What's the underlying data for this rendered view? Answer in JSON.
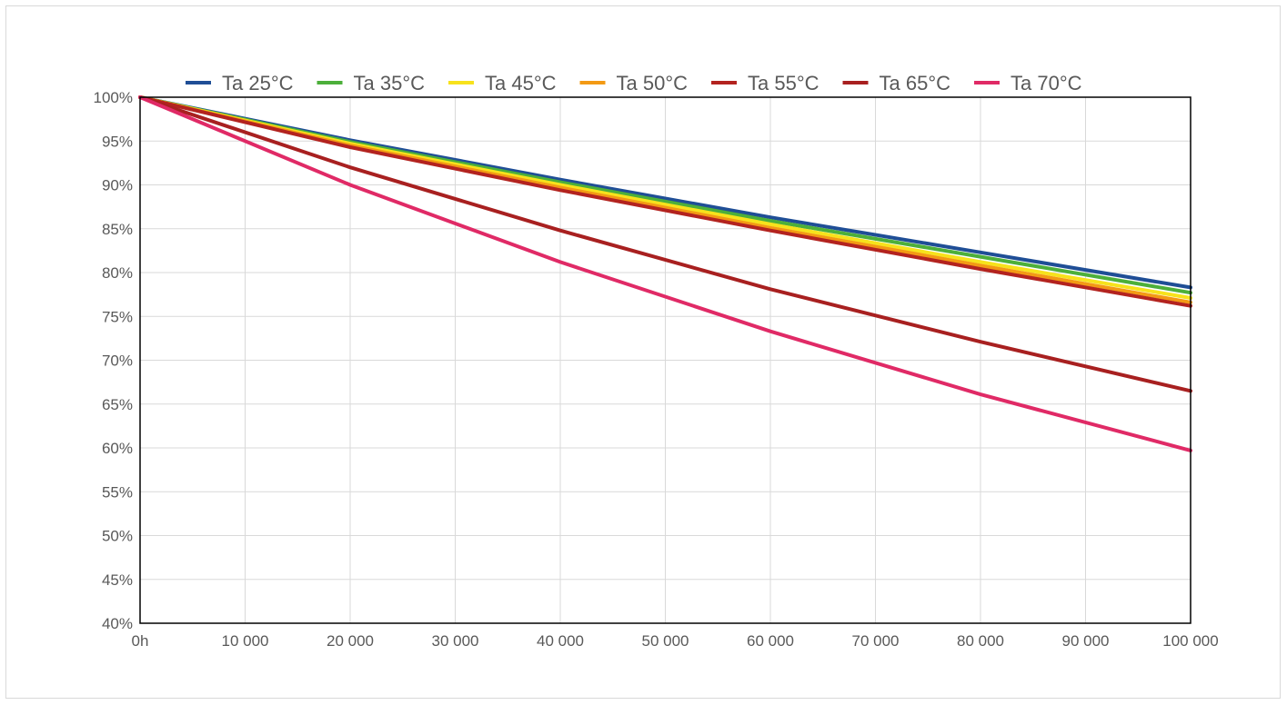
{
  "chart_data": {
    "type": "line",
    "title": "",
    "xlabel": "",
    "ylabel": "",
    "x": [
      0,
      20000,
      40000,
      60000,
      80000,
      100000
    ],
    "xlim": [
      0,
      100000
    ],
    "ylim": [
      40,
      100
    ],
    "x_tick_values": [
      0,
      10000,
      20000,
      30000,
      40000,
      50000,
      60000,
      70000,
      80000,
      90000,
      100000
    ],
    "x_tick_labels": [
      "0h",
      "10 000",
      "20 000",
      "30 000",
      "40 000",
      "50 000",
      "60 000",
      "70 000",
      "80 000",
      "90 000",
      "100 000"
    ],
    "y_tick_values": [
      40,
      45,
      50,
      55,
      60,
      65,
      70,
      75,
      80,
      85,
      90,
      95,
      100
    ],
    "y_tick_labels": [
      "40%",
      "45%",
      "50%",
      "55%",
      "60%",
      "65%",
      "70%",
      "75%",
      "80%",
      "85%",
      "90%",
      "95%",
      "100%"
    ],
    "grid": true,
    "legend_position": "top",
    "series": [
      {
        "name": "Ta 25°C",
        "color": "#1f4e96",
        "values": [
          100,
          95.1,
          90.6,
          86.3,
          82.3,
          78.3
        ]
      },
      {
        "name": "Ta 35°C",
        "color": "#4caf3a",
        "values": [
          100,
          94.9,
          90.3,
          85.9,
          81.8,
          77.7
        ]
      },
      {
        "name": "Ta 45°C",
        "color": "#f7e21c",
        "values": [
          100,
          94.7,
          90.0,
          85.5,
          81.2,
          77.1
        ]
      },
      {
        "name": "Ta 50°C",
        "color": "#f39a14",
        "values": [
          100,
          94.5,
          89.7,
          85.1,
          80.8,
          76.6
        ]
      },
      {
        "name": "Ta 55°C",
        "color": "#b3231f",
        "values": [
          100,
          94.3,
          89.4,
          84.8,
          80.4,
          76.2
        ]
      },
      {
        "name": "Ta 65°C",
        "color": "#a82020",
        "values": [
          100,
          92.0,
          84.8,
          78.1,
          72.1,
          66.5
        ]
      },
      {
        "name": "Ta 70°C",
        "color": "#e02a66",
        "values": [
          100,
          90.0,
          81.2,
          73.3,
          66.1,
          59.7
        ]
      }
    ]
  }
}
